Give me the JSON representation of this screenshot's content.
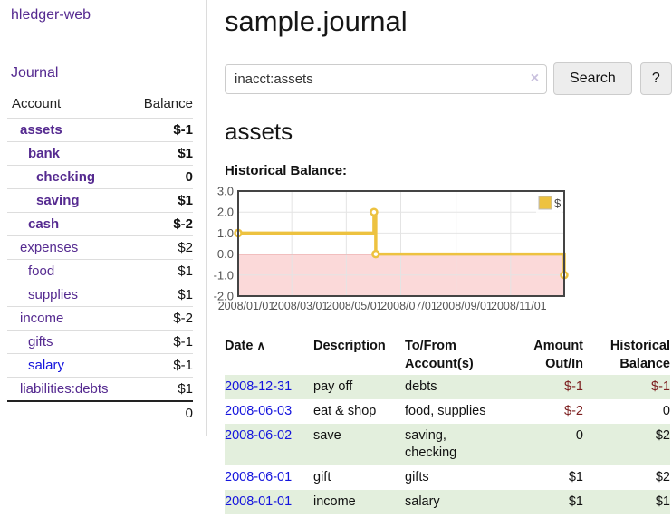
{
  "app_title": "hledger-web",
  "sidebar": {
    "journal_link": "Journal",
    "accounts": {
      "header_account": "Account",
      "header_balance": "Balance",
      "rows": [
        {
          "name": "assets",
          "balance": "$-1"
        },
        {
          "name": "bank",
          "balance": "$1"
        },
        {
          "name": "checking",
          "balance": "0"
        },
        {
          "name": "saving",
          "balance": "$1"
        },
        {
          "name": "cash",
          "balance": "$-2"
        },
        {
          "name": "expenses",
          "balance": "$2"
        },
        {
          "name": "food",
          "balance": "$1"
        },
        {
          "name": "supplies",
          "balance": "$1"
        },
        {
          "name": "income",
          "balance": "$-2"
        },
        {
          "name": "gifts",
          "balance": "$-1"
        },
        {
          "name": "salary",
          "balance": "$-1"
        },
        {
          "name": "liabilities:debts",
          "balance": "$1"
        }
      ],
      "total": "0"
    }
  },
  "main": {
    "page_title": "sample.journal",
    "search": {
      "value": "inacct:assets",
      "clear_label": "×",
      "search_button": "Search",
      "help_button": "?"
    },
    "account_heading": "assets",
    "section_label": "Historical Balance:"
  },
  "chart_data": {
    "type": "line",
    "step": true,
    "title": "Historical Balance of assets",
    "series": [
      {
        "name": "$",
        "points": [
          [
            "2008-01-01",
            1
          ],
          [
            "2008-06-01",
            2
          ],
          [
            "2008-06-03",
            0
          ],
          [
            "2008-12-31",
            -1
          ]
        ]
      }
    ],
    "xlim": [
      "2008-01-01",
      "2008-12-31"
    ],
    "ylim": [
      -2,
      3
    ],
    "y_ticks": [
      "3.0",
      "2.0",
      "1.0",
      "0.0",
      "-1.0",
      "-2.0"
    ],
    "x_ticks": [
      "2008/01/01",
      "2008/03/01",
      "2008/05/01",
      "2008/07/01",
      "2008/09/01",
      "2008/11/01"
    ],
    "legend_position": "top-right",
    "grid": true,
    "series_color": "#edc240",
    "negative_zone_color": "#fbd9d9",
    "zero_line_color": "#aa0000",
    "grid_color": "#e4e4e4",
    "border_color": "#444444",
    "tick_label_color": "#545454"
  },
  "transactions": {
    "headers": {
      "date": "Date",
      "sort_caret": "∧",
      "description": "Description",
      "tofrom": "To/From Account(s)",
      "amount": "Amount Out/In",
      "balance": "Historical Balance"
    },
    "rows": [
      {
        "date": "2008-12-31",
        "description": "pay off",
        "accounts": "debts",
        "amount": "$-1",
        "balance": "$-1"
      },
      {
        "date": "2008-06-03",
        "description": "eat & shop",
        "accounts": "food, supplies",
        "amount": "$-2",
        "balance": "0"
      },
      {
        "date": "2008-06-02",
        "description": "save",
        "accounts": "saving, checking",
        "amount": "0",
        "balance": "$2"
      },
      {
        "date": "2008-06-01",
        "description": "gift",
        "accounts": "gifts",
        "amount": "$1",
        "balance": "$2"
      },
      {
        "date": "2008-01-01",
        "description": "income",
        "accounts": "salary",
        "amount": "$1",
        "balance": "$1"
      }
    ]
  }
}
